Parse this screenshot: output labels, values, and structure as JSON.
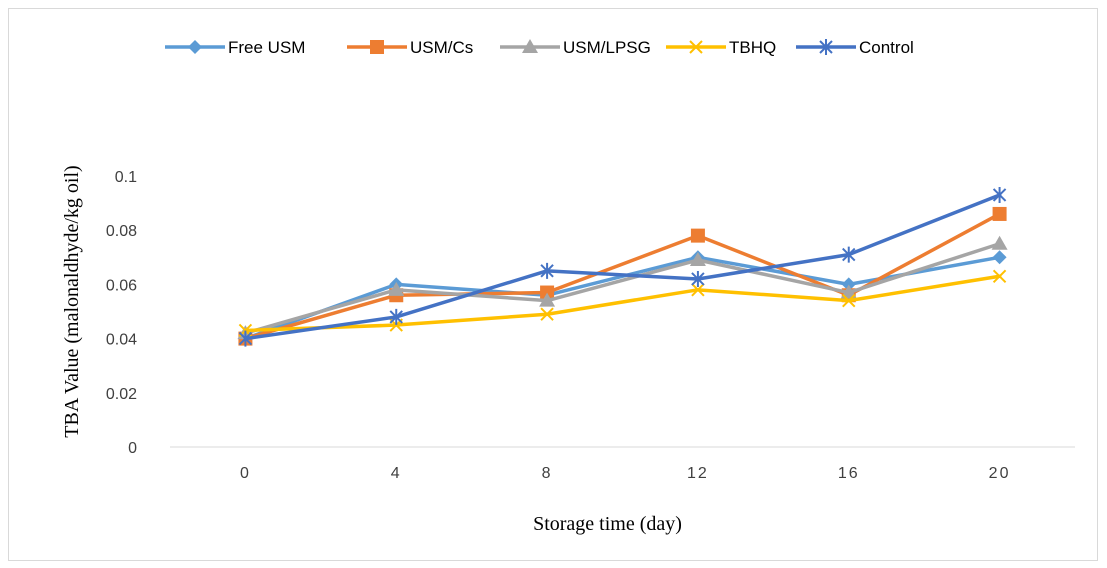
{
  "chart_data": {
    "type": "line",
    "title": "",
    "xlabel": "Storage time (day)",
    "ylabel": "TBA Value (malonaldhyde/kg oil)",
    "categories": [
      "0",
      "4",
      "8",
      "12",
      "16",
      "20"
    ],
    "ylim": [
      0,
      0.1
    ],
    "yticks": [
      "0",
      "0.02",
      "0.04",
      "0.06",
      "0.08",
      "0.1"
    ],
    "ytick_values": [
      0,
      0.02,
      0.04,
      0.06,
      0.08,
      0.1
    ],
    "grid": false,
    "legend_position": "top",
    "series": [
      {
        "name": "Free USM",
        "color": "#5B9BD5",
        "marker": "diamond",
        "values": [
          0.04,
          0.06,
          0.056,
          0.07,
          0.06,
          0.07
        ]
      },
      {
        "name": "USM/Cs",
        "color": "#ED7D31",
        "marker": "square",
        "values": [
          0.04,
          0.056,
          0.057,
          0.078,
          0.056,
          0.086
        ]
      },
      {
        "name": "USM/LPSG",
        "color": "#A5A5A5",
        "marker": "triangle",
        "values": [
          0.042,
          0.058,
          0.054,
          0.069,
          0.057,
          0.075
        ]
      },
      {
        "name": "TBHQ",
        "color": "#FFC000",
        "marker": "x",
        "values": [
          0.043,
          0.045,
          0.049,
          0.058,
          0.054,
          0.063
        ]
      },
      {
        "name": "Control",
        "color": "#4472C4",
        "marker": "star",
        "values": [
          0.04,
          0.048,
          0.065,
          0.062,
          0.071,
          0.093
        ]
      }
    ]
  }
}
